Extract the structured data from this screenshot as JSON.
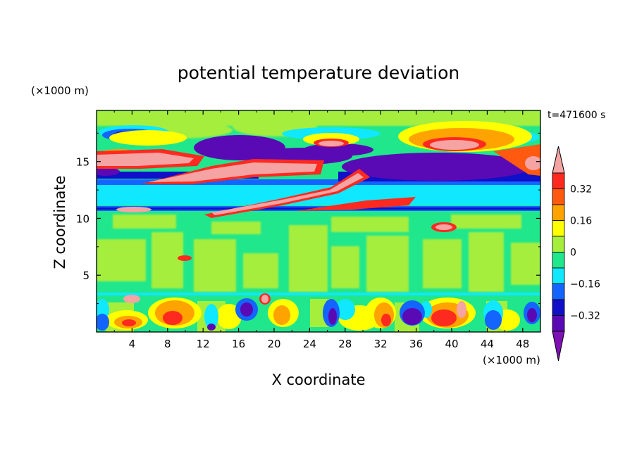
{
  "chart_data": {
    "type": "heatmap",
    "title": "potential temperature deviation",
    "xlabel": "X coordinate",
    "ylabel": "Z coordinate",
    "x_unit_label": "(×1000 m)",
    "y_unit_label": "(×1000 m)",
    "time_label": "t=471600 s",
    "xlim": [
      0,
      50
    ],
    "ylim": [
      0,
      19.5
    ],
    "x_ticks": [
      4,
      8,
      12,
      16,
      20,
      24,
      28,
      32,
      36,
      40,
      44,
      48
    ],
    "y_ticks": [
      5,
      10,
      15
    ],
    "x_tick_labels": [
      "4",
      "8",
      "12",
      "16",
      "20",
      "24",
      "28",
      "32",
      "36",
      "40",
      "44",
      "48"
    ],
    "y_tick_labels": [
      "5",
      "10",
      "15"
    ],
    "colorbar": {
      "levels": [
        -0.4,
        -0.32,
        -0.24,
        -0.16,
        -0.08,
        0,
        0.08,
        0.16,
        0.24,
        0.32,
        0.4
      ],
      "tick_values": [
        0.32,
        0.16,
        0,
        -0.16,
        -0.32
      ],
      "tick_labels": [
        "0.32",
        "0.16",
        "0",
        "−0.16",
        "−0.32"
      ],
      "colors_high_to_low": [
        "#f5a3a3",
        "#ff2a1f",
        "#ff5a10",
        "#ffa300",
        "#ffff00",
        "#a6ee3c",
        "#20e68c",
        "#10e8ff",
        "#1464ff",
        "#1010c8",
        "#5a0ab4",
        "#7e10b4"
      ],
      "extend": "both"
    },
    "features": [
      {
        "x": [
          0,
          50
        ],
        "z": [
          0,
          3.5
        ],
        "pattern": "turbulent boundary layer, mixed positive and negative cells"
      },
      {
        "x": [
          0,
          50
        ],
        "z": [
          3.5,
          10.5
        ],
        "pattern": "near zero, green/light green"
      },
      {
        "x": [
          5,
          45
        ],
        "z": [
          10.5,
          16.5
        ],
        "pattern": "tilted positive streaks (pink) with cyan/blue bands"
      },
      {
        "x": [
          0,
          50
        ],
        "z": [
          13,
          19
        ],
        "pattern": "strong negative purple lenses near 16-17"
      }
    ]
  }
}
